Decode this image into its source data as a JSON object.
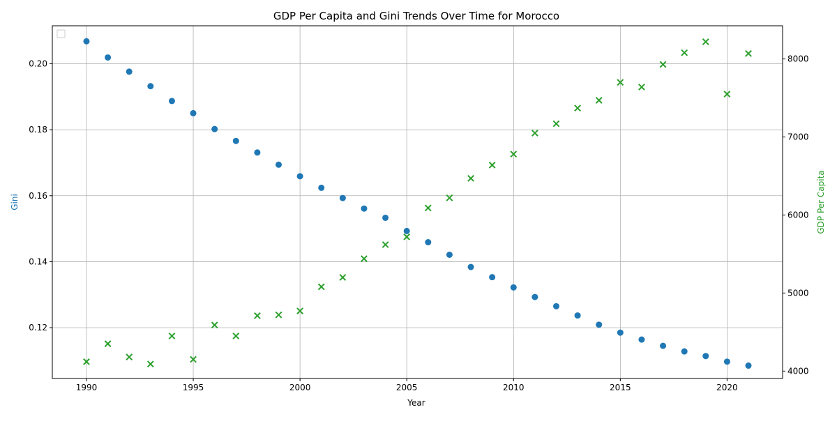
{
  "colors": {
    "gini": "#1f77b4",
    "gdp": "#2ca02c",
    "grid": "#b0b0b0",
    "axis": "#000000"
  },
  "chart_data": {
    "type": "scatter",
    "title": "GDP Per Capita and Gini Trends Over Time for Morocco",
    "xlabel": "Year",
    "ylabel_left": "Gini",
    "ylabel_right": "GDP Per Capita",
    "xlim": [
      1988.4,
      2022.6
    ],
    "ylim_left": [
      0.1046,
      0.2115
    ],
    "ylim_right": [
      3905,
      8425
    ],
    "x_ticks": [
      1990,
      1995,
      2000,
      2005,
      2010,
      2015,
      2020
    ],
    "y_left_ticks": [
      0.12,
      0.14,
      0.16,
      0.18,
      0.2
    ],
    "y_left_tick_labels": [
      "0.12",
      "0.14",
      "0.16",
      "0.18",
      "0.20"
    ],
    "y_right_ticks": [
      4000,
      5000,
      6000,
      7000,
      8000
    ],
    "grid": true,
    "legend": "upper-left (empty)",
    "x": [
      1990,
      1991,
      1992,
      1993,
      1994,
      1995,
      1996,
      1997,
      1998,
      1999,
      2000,
      2001,
      2002,
      2003,
      2004,
      2005,
      2006,
      2007,
      2008,
      2009,
      2010,
      2011,
      2012,
      2013,
      2014,
      2015,
      2016,
      2017,
      2018,
      2019,
      2020,
      2021
    ],
    "series": [
      {
        "axis": "left",
        "marker": "circle",
        "values": [
          0.2068,
          0.2019,
          0.1976,
          0.1932,
          0.1887,
          0.185,
          0.1802,
          0.1766,
          0.1731,
          0.1694,
          0.1659,
          0.1624,
          0.1593,
          0.1561,
          0.1533,
          0.1493,
          0.1459,
          0.1421,
          0.1384,
          0.1353,
          0.1322,
          0.1293,
          0.1265,
          0.1237,
          0.1209,
          0.1185,
          0.1164,
          0.1145,
          0.1128,
          0.1114,
          0.1097,
          0.1085
        ]
      },
      {
        "axis": "right",
        "marker": "x",
        "values": [
          4120,
          4350,
          4180,
          4090,
          4450,
          4150,
          4590,
          4450,
          4710,
          4720,
          4770,
          5080,
          5200,
          5440,
          5620,
          5720,
          6090,
          6220,
          6470,
          6640,
          6780,
          7050,
          7170,
          7370,
          7470,
          7700,
          7640,
          7930,
          8080,
          8220,
          7550,
          8070
        ]
      }
    ]
  }
}
